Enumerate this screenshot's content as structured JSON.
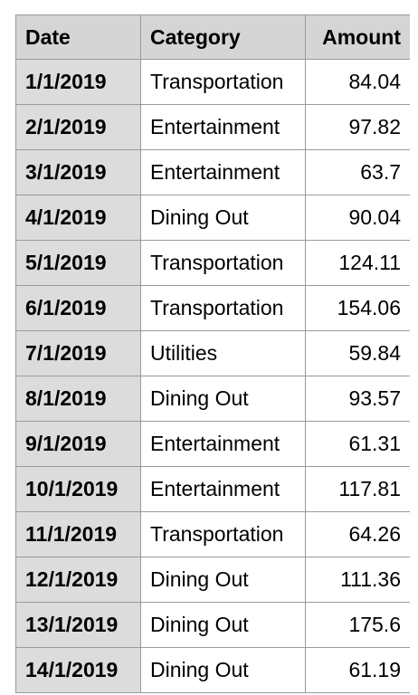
{
  "table": {
    "headers": [
      "Date",
      "Category",
      "Amount"
    ],
    "rows": [
      [
        "1/1/2019",
        "Transportation",
        "84.04"
      ],
      [
        "2/1/2019",
        "Entertainment",
        "97.82"
      ],
      [
        "3/1/2019",
        "Entertainment",
        "63.7"
      ],
      [
        "4/1/2019",
        "Dining Out",
        "90.04"
      ],
      [
        "5/1/2019",
        "Transportation",
        "124.11"
      ],
      [
        "6/1/2019",
        "Transportation",
        "154.06"
      ],
      [
        "7/1/2019",
        "Utilities",
        "59.84"
      ],
      [
        "8/1/2019",
        "Dining Out",
        "93.57"
      ],
      [
        "9/1/2019",
        "Entertainment",
        "61.31"
      ],
      [
        "10/1/2019",
        "Entertainment",
        "117.81"
      ],
      [
        "11/1/2019",
        "Transportation",
        "64.26"
      ],
      [
        "12/1/2019",
        "Dining Out",
        "111.36"
      ],
      [
        "13/1/2019",
        "Dining Out",
        "175.6"
      ],
      [
        "14/1/2019",
        "Dining Out",
        "61.19"
      ]
    ]
  },
  "colors": {
    "header_bg": "#d5d5d5",
    "date_col_bg": "#dcdcdc",
    "cell_bg": "#ffffff",
    "grid_line": "#9a9a9a"
  }
}
